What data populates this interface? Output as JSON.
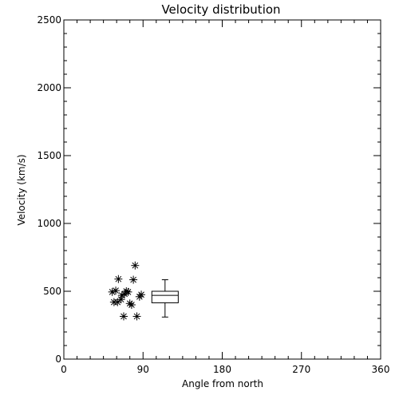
{
  "chart_data": {
    "type": "scatter",
    "title": "Velocity distribution",
    "xlabel": "Angle from north",
    "ylabel": "Velocity (km/s)",
    "xlim": [
      0,
      360
    ],
    "ylim": [
      0,
      2500
    ],
    "xticks": [
      0,
      90,
      180,
      270,
      360
    ],
    "yticks": [
      0,
      500,
      1000,
      1500,
      2000,
      2500
    ],
    "grid": false,
    "marker": "asterisk",
    "points": [
      {
        "x": 55,
        "y": 495
      },
      {
        "x": 57,
        "y": 420
      },
      {
        "x": 59,
        "y": 505
      },
      {
        "x": 61,
        "y": 420
      },
      {
        "x": 62,
        "y": 590
      },
      {
        "x": 65,
        "y": 440
      },
      {
        "x": 66,
        "y": 470
      },
      {
        "x": 68,
        "y": 315
      },
      {
        "x": 69,
        "y": 480
      },
      {
        "x": 71,
        "y": 500
      },
      {
        "x": 73,
        "y": 495
      },
      {
        "x": 75,
        "y": 410
      },
      {
        "x": 77,
        "y": 400
      },
      {
        "x": 79,
        "y": 585
      },
      {
        "x": 81,
        "y": 690
      },
      {
        "x": 83,
        "y": 315
      },
      {
        "x": 86,
        "y": 460
      },
      {
        "x": 88,
        "y": 475
      }
    ],
    "boxplot": {
      "x_center": 115,
      "x_halfwidth": 15,
      "min": 310,
      "q1": 415,
      "median": 470,
      "q3": 500,
      "max": 585
    }
  }
}
